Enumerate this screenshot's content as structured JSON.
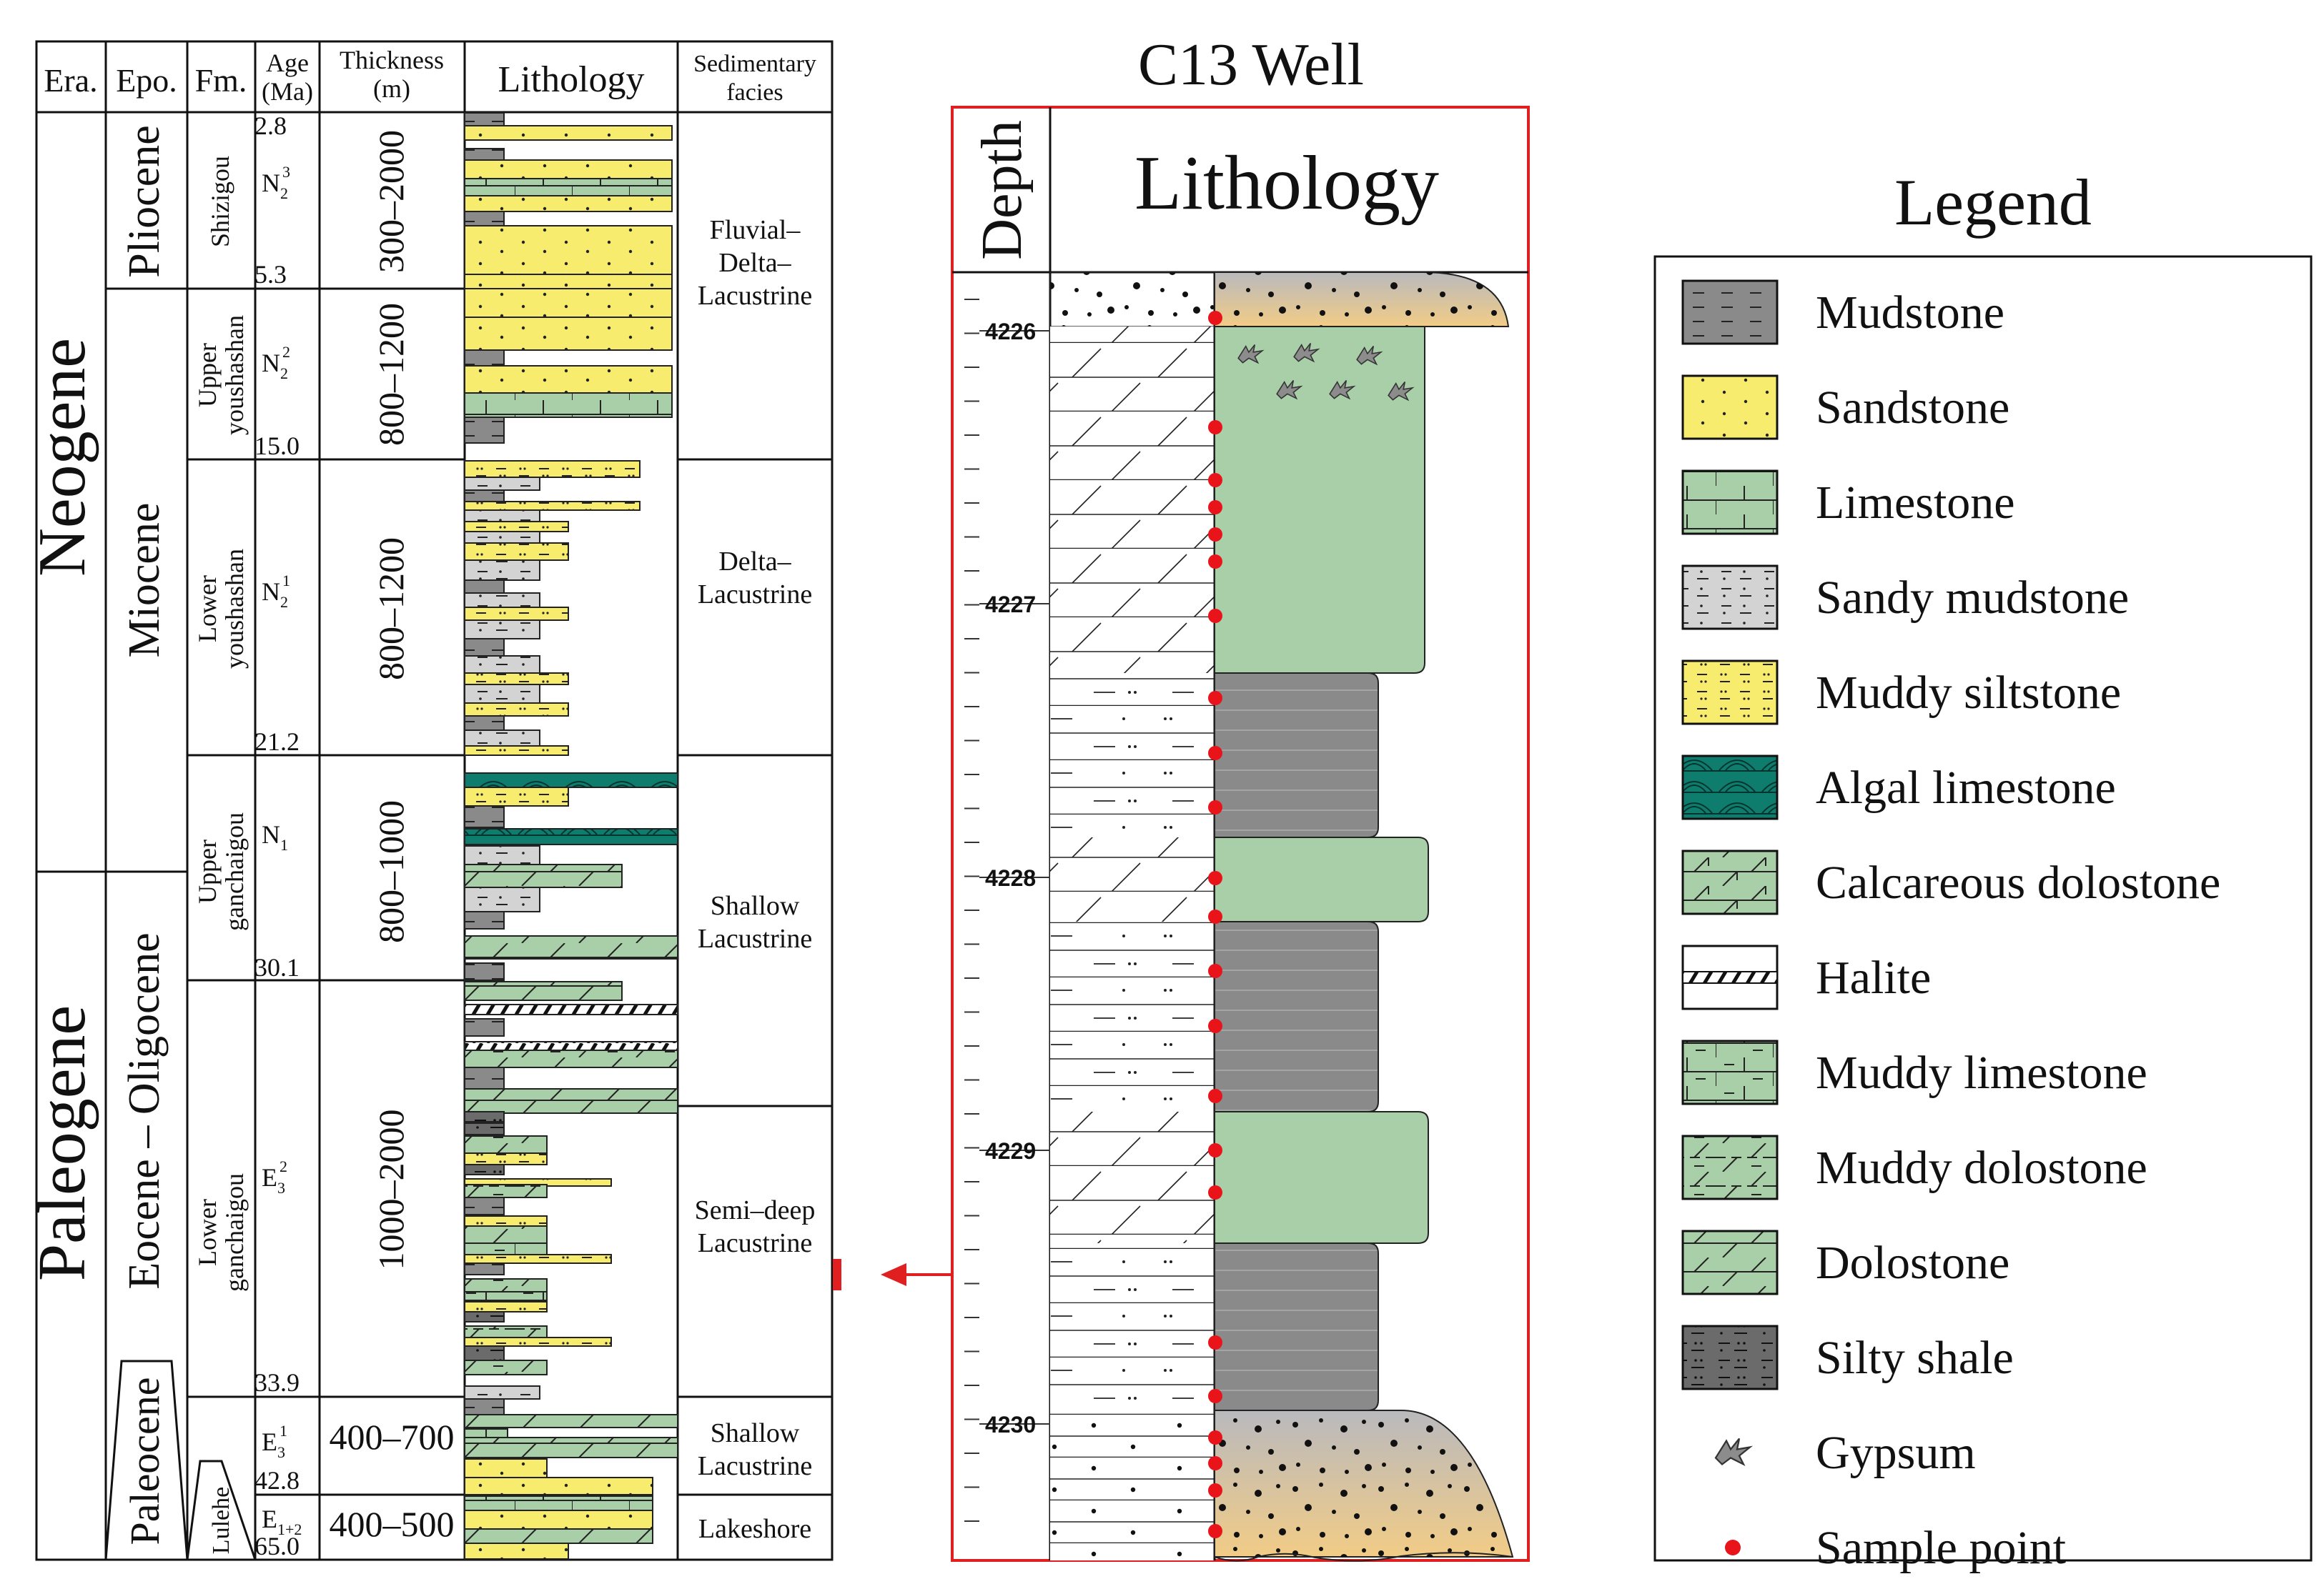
{
  "strat_column": {
    "headers": {
      "era": "Era.",
      "epoch": "Epo.",
      "formation": "Fm.",
      "age": "Age (Ma)",
      "thickness": "Thickness (m)",
      "lithology": "Lithology",
      "facies": "Sedimentary facies"
    },
    "eras": [
      "Neogene",
      "Paleogene"
    ],
    "epochs": [
      "Pliocene",
      "Miocene",
      "Eocene – Oligocene",
      "Paleocene"
    ],
    "formations": [
      "Shizigou",
      "Upper youshashan",
      "Lower youshashan",
      "Upper ganchaigou",
      "Lower ganchaigou",
      "Lulehe"
    ],
    "codes": [
      {
        "base": "N",
        "sub": "2",
        "sup": "3"
      },
      {
        "base": "N",
        "sub": "2",
        "sup": "2"
      },
      {
        "base": "N",
        "sub": "2",
        "sup": "1"
      },
      {
        "base": "N",
        "sub": "1",
        "sup": ""
      },
      {
        "base": "E",
        "sub": "3",
        "sup": "2"
      },
      {
        "base": "E",
        "sub": "3",
        "sup": "1"
      },
      {
        "base": "E",
        "sub": "1+2",
        "sup": ""
      }
    ],
    "ages": [
      "2.8",
      "5.3",
      "15.0",
      "21.2",
      "30.1",
      "33.9",
      "42.8",
      "65.0"
    ],
    "thicknesses": [
      "300–2000",
      "800–1200",
      "800–1200",
      "800–1000",
      "1000–2000",
      "400–700",
      "400–500"
    ],
    "facies": [
      "Fluvial– Delta– Lacustrine",
      "Delta– Lacustrine",
      "Shallow Lacustrine",
      "Semi–deep Lacustrine",
      "Shallow Lacustrine",
      "Lakeshore"
    ]
  },
  "well": {
    "title": "C13 Well",
    "depth_header": "Depth",
    "lithology_header": "Lithology",
    "depth_labels": [
      "4226",
      "4227",
      "4228",
      "4229",
      "4230"
    ]
  },
  "legend": {
    "title": "Legend",
    "items": [
      {
        "label": "Mudstone",
        "icon": "mudstone-pattern"
      },
      {
        "label": "Sandstone",
        "icon": "sandstone-pattern"
      },
      {
        "label": "Limestone",
        "icon": "limestone-pattern"
      },
      {
        "label": "Sandy mudstone",
        "icon": "sandy-mudstone-pattern"
      },
      {
        "label": "Muddy siltstone",
        "icon": "muddy-siltstone-pattern"
      },
      {
        "label": "Algal limestone",
        "icon": "algal-limestone-pattern"
      },
      {
        "label": "Calcareous dolostone",
        "icon": "calcareous-dolostone-pattern"
      },
      {
        "label": "Halite",
        "icon": "halite-pattern"
      },
      {
        "label": "Muddy limestone",
        "icon": "muddy-limestone-pattern"
      },
      {
        "label": "Muddy dolostone",
        "icon": "muddy-dolostone-pattern"
      },
      {
        "label": "Dolostone",
        "icon": "dolostone-pattern"
      },
      {
        "label": "Silty shale",
        "icon": "silty-shale-pattern"
      },
      {
        "label": "Gypsum",
        "icon": "gypsum-icon"
      },
      {
        "label": "Sample point",
        "icon": "sample-point-icon"
      }
    ]
  },
  "colors": {
    "sandstone": "#f7ec6e",
    "green": "#a9cfa9",
    "gray": "#d3d3d3",
    "dark": "#8a8a8a",
    "algal": "#0e7d6e",
    "sample": "#e8141a",
    "frame": "#e02020"
  }
}
